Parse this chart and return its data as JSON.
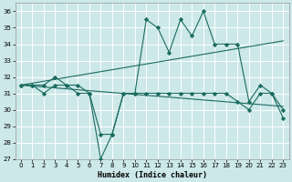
{
  "xlabel": "Humidex (Indice chaleur)",
  "background_color": "#cce8e8",
  "grid_color": "#ffffff",
  "line_color": "#1a6b60",
  "xlim": [
    -0.5,
    23.5
  ],
  "ylim": [
    27,
    36.5
  ],
  "yticks": [
    27,
    28,
    29,
    30,
    31,
    32,
    33,
    34,
    35,
    36
  ],
  "xticks": [
    0,
    1,
    2,
    3,
    4,
    5,
    6,
    7,
    8,
    9,
    10,
    11,
    12,
    13,
    14,
    15,
    16,
    17,
    18,
    19,
    20,
    21,
    22,
    23
  ],
  "line1_x": [
    0,
    1,
    2,
    3,
    4,
    5,
    6,
    7,
    8,
    9,
    10,
    11,
    12,
    13,
    14,
    15,
    16,
    17,
    18,
    19,
    20,
    21,
    22,
    23
  ],
  "line1_y": [
    31.5,
    31.5,
    31.5,
    32.0,
    31.5,
    31.5,
    31.0,
    28.5,
    28.5,
    31.0,
    31.0,
    35.5,
    35.0,
    33.5,
    35.5,
    34.5,
    36.0,
    34.0,
    34.0,
    34.0,
    30.5,
    31.5,
    31.0,
    29.5
  ],
  "line2_x": [
    0,
    1,
    2,
    3,
    4,
    5,
    6,
    7,
    8,
    9,
    10,
    11,
    12,
    13,
    14,
    15,
    16,
    17,
    18,
    19,
    20,
    21,
    22,
    23
  ],
  "line2_y": [
    31.5,
    31.5,
    31.0,
    31.5,
    31.5,
    31.0,
    31.0,
    27.0,
    28.5,
    31.0,
    31.0,
    31.0,
    31.0,
    31.0,
    31.0,
    31.0,
    31.0,
    31.0,
    31.0,
    30.5,
    30.0,
    31.0,
    31.0,
    30.0
  ],
  "trend1_x": [
    0,
    23
  ],
  "trend1_y": [
    31.5,
    34.2
  ],
  "trend2_x": [
    0,
    23
  ],
  "trend2_y": [
    31.5,
    30.2
  ]
}
